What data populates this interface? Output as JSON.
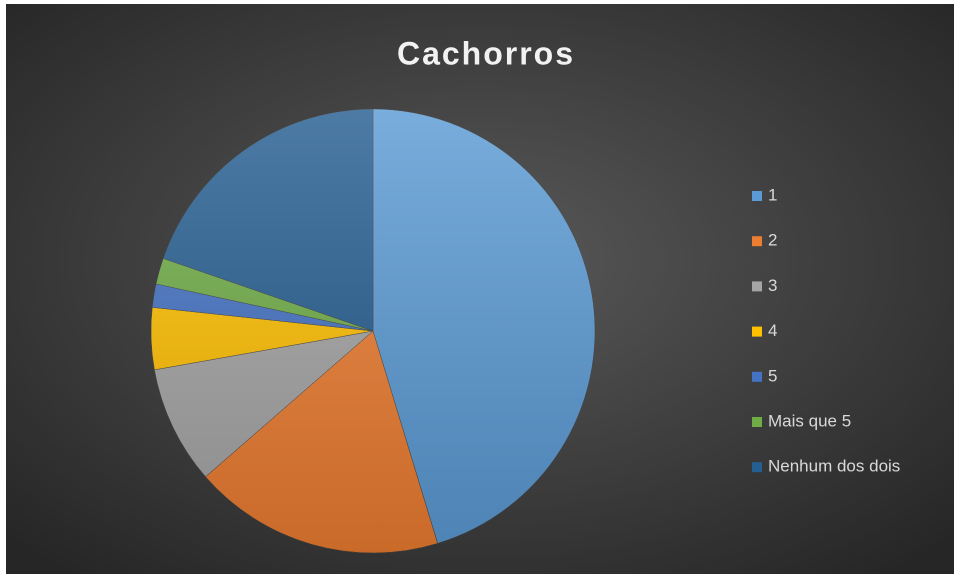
{
  "chart_data": {
    "type": "pie",
    "title": "Cachorros",
    "categories": [
      "1",
      "2",
      "3",
      "4",
      "5",
      "Mais que 5",
      "Nenhum dos dois"
    ],
    "values": [
      45.3,
      18.3,
      8.6,
      4.5,
      1.7,
      1.9,
      19.7
    ],
    "colors": [
      "#5b9bd5",
      "#ed7d31",
      "#a5a5a5",
      "#ffc000",
      "#4472c4",
      "#70ad47",
      "#255e91"
    ],
    "legend": "right"
  }
}
